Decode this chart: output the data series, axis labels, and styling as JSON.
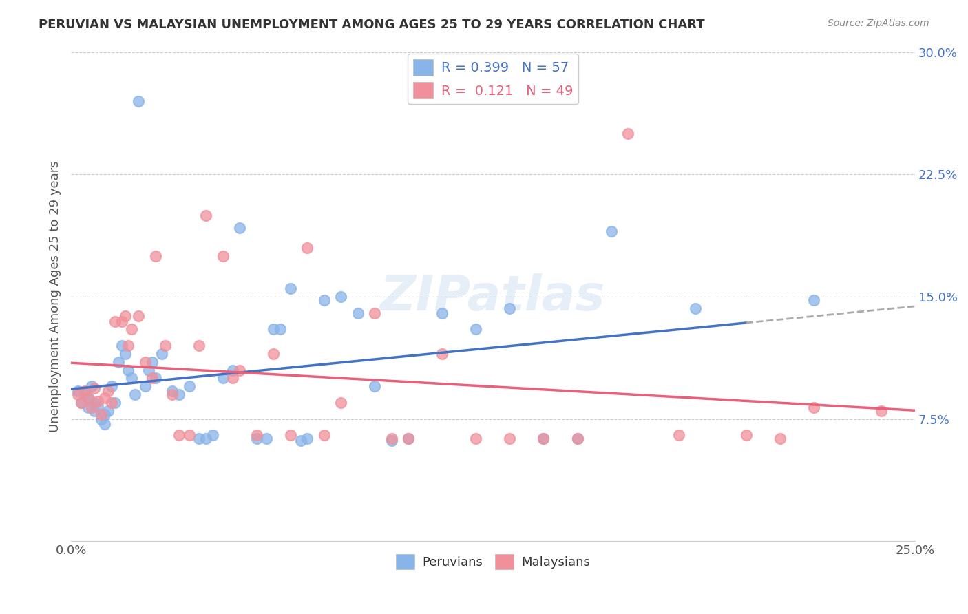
{
  "title": "PERUVIAN VS MALAYSIAN UNEMPLOYMENT AMONG AGES 25 TO 29 YEARS CORRELATION CHART",
  "source": "Source: ZipAtlas.com",
  "ylabel": "Unemployment Among Ages 25 to 29 years",
  "xlim": [
    0.0,
    0.25
  ],
  "ylim": [
    0.0,
    0.3
  ],
  "xticks": [
    0.0,
    0.05,
    0.1,
    0.15,
    0.2,
    0.25
  ],
  "xtick_labels": [
    "0.0%",
    "",
    "",
    "",
    "",
    "25.0%"
  ],
  "yticks": [
    0.0,
    0.075,
    0.15,
    0.225,
    0.3
  ],
  "ytick_labels": [
    "",
    "7.5%",
    "15.0%",
    "22.5%",
    "30.0%"
  ],
  "peruvian_color": "#89b4e8",
  "malaysian_color": "#f0909a",
  "peruvian_line_color": "#4472c4",
  "malaysian_line_color": "#e8607a",
  "legend_peruvian_R": "0.399",
  "legend_peruvian_N": "57",
  "legend_malaysian_R": "0.121",
  "legend_malaysian_N": "49",
  "watermark": "ZIPatlas",
  "peruvian_scatter_x": [
    0.002,
    0.003,
    0.004,
    0.005,
    0.005,
    0.006,
    0.007,
    0.007,
    0.008,
    0.009,
    0.01,
    0.01,
    0.011,
    0.012,
    0.013,
    0.014,
    0.015,
    0.016,
    0.017,
    0.018,
    0.019,
    0.02,
    0.022,
    0.023,
    0.024,
    0.025,
    0.027,
    0.03,
    0.032,
    0.035,
    0.038,
    0.04,
    0.042,
    0.045,
    0.048,
    0.05,
    0.055,
    0.058,
    0.06,
    0.062,
    0.065,
    0.068,
    0.07,
    0.075,
    0.08,
    0.085,
    0.09,
    0.095,
    0.1,
    0.11,
    0.12,
    0.13,
    0.14,
    0.15,
    0.16,
    0.185,
    0.22
  ],
  "peruvian_scatter_y": [
    0.092,
    0.085,
    0.09,
    0.082,
    0.088,
    0.095,
    0.08,
    0.085,
    0.083,
    0.075,
    0.078,
    0.072,
    0.08,
    0.095,
    0.085,
    0.11,
    0.12,
    0.115,
    0.105,
    0.1,
    0.09,
    0.27,
    0.095,
    0.105,
    0.11,
    0.1,
    0.115,
    0.092,
    0.09,
    0.095,
    0.063,
    0.063,
    0.065,
    0.1,
    0.105,
    0.192,
    0.063,
    0.063,
    0.13,
    0.13,
    0.155,
    0.062,
    0.063,
    0.148,
    0.15,
    0.14,
    0.095,
    0.062,
    0.063,
    0.14,
    0.13,
    0.143,
    0.063,
    0.063,
    0.19,
    0.143,
    0.148
  ],
  "malaysian_scatter_x": [
    0.002,
    0.003,
    0.004,
    0.005,
    0.006,
    0.007,
    0.008,
    0.009,
    0.01,
    0.011,
    0.012,
    0.013,
    0.015,
    0.016,
    0.017,
    0.018,
    0.02,
    0.022,
    0.024,
    0.025,
    0.028,
    0.03,
    0.032,
    0.035,
    0.038,
    0.04,
    0.045,
    0.048,
    0.05,
    0.055,
    0.06,
    0.065,
    0.07,
    0.075,
    0.08,
    0.09,
    0.095,
    0.1,
    0.11,
    0.12,
    0.13,
    0.14,
    0.15,
    0.165,
    0.18,
    0.2,
    0.21,
    0.22,
    0.24
  ],
  "malaysian_scatter_y": [
    0.09,
    0.085,
    0.092,
    0.088,
    0.082,
    0.094,
    0.086,
    0.078,
    0.088,
    0.092,
    0.085,
    0.135,
    0.135,
    0.138,
    0.12,
    0.13,
    0.138,
    0.11,
    0.1,
    0.175,
    0.12,
    0.09,
    0.065,
    0.065,
    0.12,
    0.2,
    0.175,
    0.1,
    0.105,
    0.065,
    0.115,
    0.065,
    0.18,
    0.065,
    0.085,
    0.14,
    0.063,
    0.063,
    0.115,
    0.063,
    0.063,
    0.063,
    0.063,
    0.25,
    0.065,
    0.065,
    0.063,
    0.082,
    0.08
  ]
}
